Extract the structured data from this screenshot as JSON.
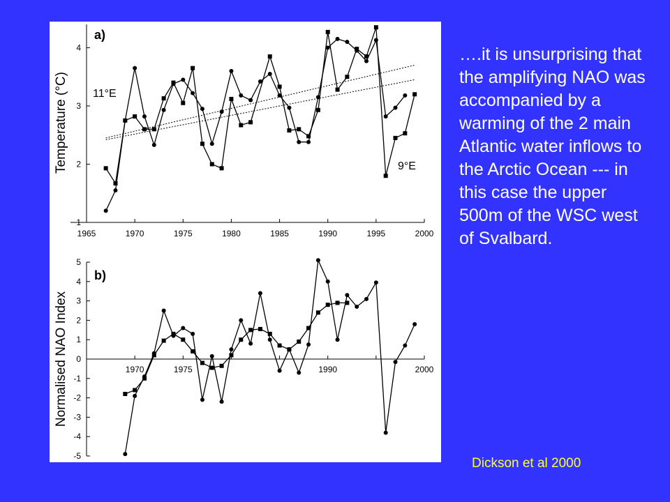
{
  "caption": "….it is unsurprising that the amplifying NAO was accompanied by a warming of the 2 main Atlantic water inflows to the Arctic Ocean --- in this case the upper 500m of the WSC west of Svalbard.",
  "citation": "Dickson et al 2000",
  "colors": {
    "background": "#3333ff",
    "caption": "#ffffff",
    "citation": "#ffff33"
  },
  "chart_data": [
    {
      "type": "line",
      "panel_label": "a)",
      "ylabel": "Temperature (°C)",
      "xlim": [
        1965,
        2000
      ],
      "ylim": [
        1,
        4.4
      ],
      "x_ticks": [
        1965,
        1970,
        1975,
        1980,
        1985,
        1990,
        1995,
        2000
      ],
      "y_ticks": [
        1,
        2,
        3,
        4
      ],
      "series": [
        {
          "name": "11°E",
          "marker": "circle",
          "points": [
            [
              1967,
              1.2
            ],
            [
              1968,
              1.55
            ],
            [
              1969,
              2.75
            ],
            [
              1970,
              3.65
            ],
            [
              1971,
              2.82
            ],
            [
              1972,
              2.33
            ],
            [
              1973,
              2.93
            ],
            [
              1974,
              3.38
            ],
            [
              1975,
              3.45
            ],
            [
              1976,
              3.22
            ],
            [
              1977,
              2.95
            ],
            [
              1978,
              2.35
            ],
            [
              1979,
              2.9
            ],
            [
              1980,
              3.6
            ],
            [
              1981,
              3.18
            ],
            [
              1982,
              3.1
            ],
            [
              1983,
              3.42
            ],
            [
              1984,
              3.55
            ],
            [
              1985,
              3.18
            ],
            [
              1986,
              2.97
            ],
            [
              1987,
              2.38
            ],
            [
              1988,
              2.38
            ],
            [
              1989,
              3.15
            ],
            [
              1990,
              4.0
            ],
            [
              1991,
              4.15
            ],
            [
              1992,
              4.1
            ],
            [
              1993,
              3.95
            ],
            [
              1994,
              3.77
            ],
            [
              1995,
              4.13
            ],
            [
              1996,
              2.82
            ],
            [
              1997,
              2.97
            ],
            [
              1998,
              3.18
            ]
          ]
        },
        {
          "name": "9°E",
          "marker": "square",
          "points": [
            [
              1967,
              1.93
            ],
            [
              1968,
              1.67
            ],
            [
              1969,
              2.75
            ],
            [
              1970,
              2.82
            ],
            [
              1971,
              2.6
            ],
            [
              1972,
              2.6
            ],
            [
              1973,
              3.13
            ],
            [
              1974,
              3.4
            ],
            [
              1975,
              3.05
            ],
            [
              1976,
              3.65
            ],
            [
              1977,
              2.35
            ],
            [
              1978,
              2.0
            ],
            [
              1979,
              1.93
            ],
            [
              1980,
              3.12
            ],
            [
              1981,
              2.67
            ],
            [
              1982,
              2.72
            ],
            [
              1984,
              3.85
            ],
            [
              1985,
              3.33
            ],
            [
              1986,
              2.58
            ],
            [
              1987,
              2.6
            ],
            [
              1988,
              2.48
            ],
            [
              1989,
              2.93
            ],
            [
              1990,
              4.27
            ],
            [
              1991,
              3.28
            ],
            [
              1992,
              3.5
            ],
            [
              1993,
              3.98
            ],
            [
              1994,
              3.85
            ],
            [
              1995,
              4.35
            ],
            [
              1996,
              1.8
            ],
            [
              1997,
              2.45
            ],
            [
              1998,
              2.53
            ],
            [
              1999,
              3.2
            ]
          ]
        }
      ],
      "trend_lines": [
        {
          "x": [
            1967,
            1999
          ],
          "y": [
            2.45,
            3.7
          ]
        },
        {
          "x": [
            1967,
            1999
          ],
          "y": [
            2.42,
            3.45
          ]
        }
      ]
    },
    {
      "type": "line",
      "panel_label": "b)",
      "ylabel": "Normalised NAO Index",
      "xlim": [
        1965,
        2000
      ],
      "ylim": [
        -5,
        5
      ],
      "x_ticks": [
        1970,
        1975,
        1980,
        1985,
        1990,
        1995,
        2000
      ],
      "x_tick_labels": [
        "1970",
        "1975",
        "",
        "",
        "1990",
        "",
        "2000"
      ],
      "y_ticks": [
        5,
        4,
        3,
        2,
        1,
        0,
        -1,
        -2,
        -3,
        -4,
        -5
      ],
      "series": [
        {
          "marker": "circle",
          "points": [
            [
              1969,
              -4.9
            ],
            [
              1970,
              -1.9
            ],
            [
              1971,
              -0.9
            ],
            [
              1972,
              0.3
            ],
            [
              1973,
              2.5
            ],
            [
              1974,
              1.2
            ],
            [
              1975,
              1.6
            ],
            [
              1976,
              1.3
            ],
            [
              1977,
              -2.1
            ],
            [
              1978,
              0.15
            ],
            [
              1979,
              -2.2
            ],
            [
              1980,
              0.5
            ],
            [
              1981,
              2.0
            ],
            [
              1982,
              0.8
            ],
            [
              1983,
              3.4
            ],
            [
              1984,
              1.0
            ],
            [
              1985,
              -0.6
            ],
            [
              1986,
              0.5
            ],
            [
              1987,
              -0.7
            ],
            [
              1988,
              0.75
            ],
            [
              1989,
              5.1
            ],
            [
              1990,
              4.0
            ],
            [
              1991,
              1.0
            ],
            [
              1992,
              3.3
            ],
            [
              1993,
              2.7
            ],
            [
              1994,
              3.1
            ],
            [
              1995,
              3.95
            ],
            [
              1996,
              -3.8
            ],
            [
              1997,
              -0.15
            ],
            [
              1998,
              0.7
            ],
            [
              1999,
              1.8
            ]
          ]
        },
        {
          "marker": "square",
          "points": [
            [
              1969,
              -1.8
            ],
            [
              1970,
              -1.6
            ],
            [
              1971,
              -1.0
            ],
            [
              1972,
              0.2
            ],
            [
              1973,
              0.95
            ],
            [
              1974,
              1.3
            ],
            [
              1975,
              1.0
            ],
            [
              1976,
              0.4
            ],
            [
              1977,
              -0.2
            ],
            [
              1978,
              -0.45
            ],
            [
              1979,
              -0.35
            ],
            [
              1980,
              0.2
            ],
            [
              1981,
              1.0
            ],
            [
              1982,
              1.5
            ],
            [
              1983,
              1.55
            ],
            [
              1984,
              1.3
            ],
            [
              1985,
              0.7
            ],
            [
              1986,
              0.5
            ],
            [
              1987,
              0.9
            ],
            [
              1988,
              1.6
            ],
            [
              1989,
              2.4
            ],
            [
              1990,
              2.8
            ],
            [
              1991,
              2.9
            ],
            [
              1992,
              2.9
            ]
          ]
        }
      ]
    }
  ]
}
